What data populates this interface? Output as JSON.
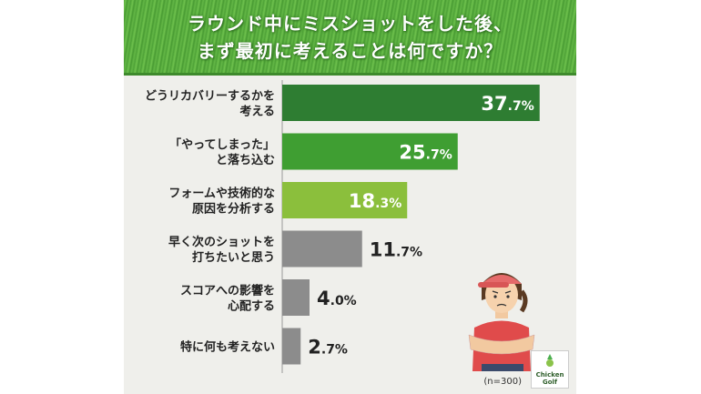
{
  "title": {
    "line1": "ラウンド中にミスショットをした後、",
    "line2": "まず最初に考えることは何ですか？"
  },
  "chart_data": {
    "type": "bar",
    "orientation": "horizontal",
    "title": "ラウンド中にミスショットをした後、まず最初に考えることは何ですか？",
    "categories": [
      [
        "どうリカバリーするかを",
        "考える"
      ],
      [
        "「やってしまった」",
        "と落ち込む"
      ],
      [
        "フォームや技術的な",
        "原因を分析する"
      ],
      [
        "早く次のショットを",
        "打ちたいと思う"
      ],
      [
        "スコアへの影響を",
        "心配する"
      ],
      [
        "特に何も考えない"
      ]
    ],
    "values": [
      37.7,
      25.7,
      18.3,
      11.7,
      4.0,
      2.7
    ],
    "unit": "%",
    "colors": [
      "#2e7d32",
      "#3f9e32",
      "#8bbf3c",
      "#8c8c8c",
      "#8c8c8c",
      "#8c8c8c"
    ],
    "xlim": [
      0,
      40
    ],
    "grid": false
  },
  "sample_note": "(n=300)",
  "logo": {
    "line1": "Chicken",
    "line2": "Golf"
  }
}
